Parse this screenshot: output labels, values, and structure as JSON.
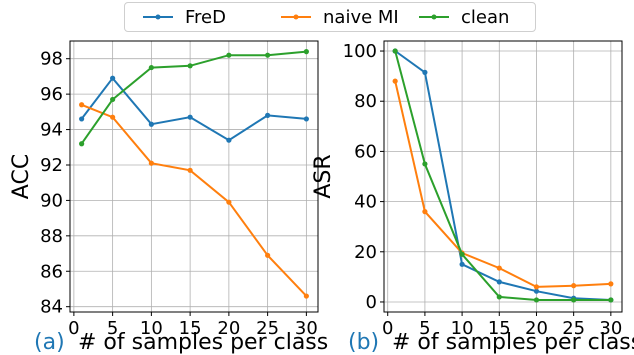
{
  "legend": [
    {
      "name": "FreD",
      "color": "#1f77b4"
    },
    {
      "name": "naive MI",
      "color": "#ff7f0e"
    },
    {
      "name": "clean",
      "color": "#2ca02c"
    }
  ],
  "chart_data": [
    {
      "type": "line",
      "panel_label": "(a)",
      "xlabel": "# of samples per class",
      "ylabel": "ACC",
      "x": [
        1,
        5,
        10,
        15,
        20,
        25,
        30
      ],
      "xticks": [
        0,
        5,
        10,
        15,
        20,
        25,
        30
      ],
      "yticks": [
        84,
        86,
        88,
        90,
        92,
        94,
        96,
        98
      ],
      "xlim": [
        -0.5,
        31.5
      ],
      "ylim": [
        83.7,
        99.0
      ],
      "grid": true,
      "legend_position": "top-center",
      "series": [
        {
          "name": "FreD",
          "color": "#1f77b4",
          "values": [
            94.6,
            96.9,
            94.3,
            94.7,
            93.4,
            94.8,
            94.6
          ]
        },
        {
          "name": "naive MI",
          "color": "#ff7f0e",
          "values": [
            95.4,
            94.7,
            92.1,
            91.7,
            89.9,
            86.9,
            84.6
          ]
        },
        {
          "name": "clean",
          "color": "#2ca02c",
          "values": [
            93.2,
            95.7,
            97.5,
            97.6,
            98.2,
            98.2,
            98.4
          ]
        }
      ]
    },
    {
      "type": "line",
      "panel_label": "(b)",
      "xlabel": "# of samples per class",
      "ylabel": "ASR",
      "x": [
        1,
        5,
        10,
        15,
        20,
        25,
        30
      ],
      "xticks": [
        0,
        5,
        10,
        15,
        20,
        25,
        30
      ],
      "yticks": [
        0,
        20,
        40,
        60,
        80,
        100
      ],
      "xlim": [
        -0.5,
        31.5
      ],
      "ylim": [
        -4,
        104
      ],
      "grid": true,
      "legend_position": "top-center",
      "series": [
        {
          "name": "FreD",
          "color": "#1f77b4",
          "values": [
            100,
            91.5,
            15,
            8,
            4.3,
            1.5,
            0.8
          ]
        },
        {
          "name": "naive MI",
          "color": "#ff7f0e",
          "values": [
            88,
            36,
            19.5,
            13.5,
            6,
            6.5,
            7.2
          ]
        },
        {
          "name": "clean",
          "color": "#2ca02c",
          "values": [
            100,
            55,
            19,
            2,
            0.8,
            0.8,
            0.8
          ]
        }
      ]
    }
  ]
}
